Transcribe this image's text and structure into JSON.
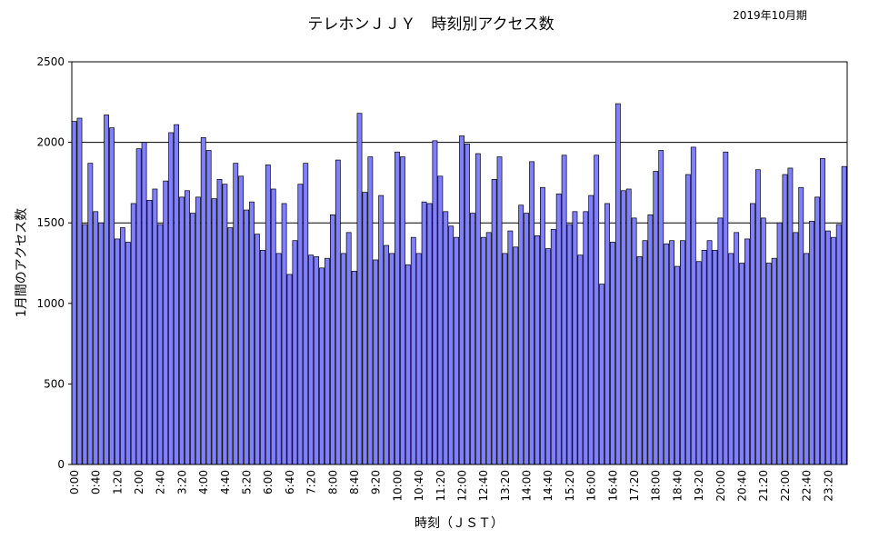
{
  "chart_data": {
    "type": "bar",
    "title": "テレホンＪＪＹ　時刻別アクセス数",
    "subtitle": "2019年10月期",
    "xlabel": "時刻（ＪＳＴ）",
    "ylabel": "1月間のアクセス数",
    "ylim": [
      0,
      2500
    ],
    "y_ticks": [
      "0",
      "500",
      "1000",
      "1500",
      "2000",
      "2500"
    ],
    "grid_y": [
      1500,
      2000
    ],
    "legend": "none",
    "bar_color": "#7f7fff",
    "bar_edge_color": "#000000",
    "x_tick_labels": [
      "0:00",
      "0:40",
      "1:20",
      "2:00",
      "2:40",
      "3:20",
      "4:00",
      "4:40",
      "5:20",
      "6:00",
      "6:40",
      "7:20",
      "8:00",
      "8:40",
      "9:20",
      "10:00",
      "10:40",
      "11:20",
      "12:00",
      "12:40",
      "13:20",
      "14:00",
      "14:40",
      "15:20",
      "16:00",
      "16:40",
      "17:20",
      "18:00",
      "18:40",
      "19:20",
      "20:00",
      "20:40",
      "21:20",
      "22:00",
      "22:40",
      "23:20"
    ],
    "values": [
      2130,
      2150,
      1490,
      1870,
      1570,
      1500,
      2170,
      2090,
      1400,
      1470,
      1380,
      1620,
      1960,
      2000,
      1640,
      1710,
      1490,
      1760,
      2060,
      2110,
      1660,
      1700,
      1560,
      1660,
      2030,
      1950,
      1650,
      1770,
      1740,
      1470,
      1870,
      1790,
      1580,
      1630,
      1430,
      1330,
      1860,
      1710,
      1310,
      1620,
      1180,
      1390,
      1740,
      1870,
      1300,
      1290,
      1220,
      1280,
      1550,
      1890,
      1310,
      1440,
      1200,
      2180,
      1690,
      1910,
      1270,
      1670,
      1360,
      1310,
      1940,
      1910,
      1240,
      1410,
      1310,
      1630,
      1620,
      2010,
      1790,
      1570,
      1480,
      1410,
      2040,
      1990,
      1560,
      1930,
      1410,
      1440,
      1770,
      1910,
      1310,
      1450,
      1350,
      1610,
      1560,
      1880,
      1420,
      1720,
      1340,
      1460,
      1680,
      1920,
      1490,
      1570,
      1300,
      1570,
      1670,
      1920,
      1120,
      1620,
      1380,
      2240,
      1700,
      1710,
      1530,
      1290,
      1390,
      1550,
      1820,
      1950,
      1370,
      1390,
      1230,
      1390,
      1800,
      1970,
      1260,
      1330,
      1390,
      1330,
      1530,
      1940,
      1310,
      1440,
      1250,
      1400,
      1620,
      1830,
      1530,
      1250,
      1280,
      1500,
      1800,
      1840,
      1440,
      1720,
      1310,
      1510,
      1660,
      1900,
      1450,
      1410,
      1490,
      1850
    ]
  }
}
